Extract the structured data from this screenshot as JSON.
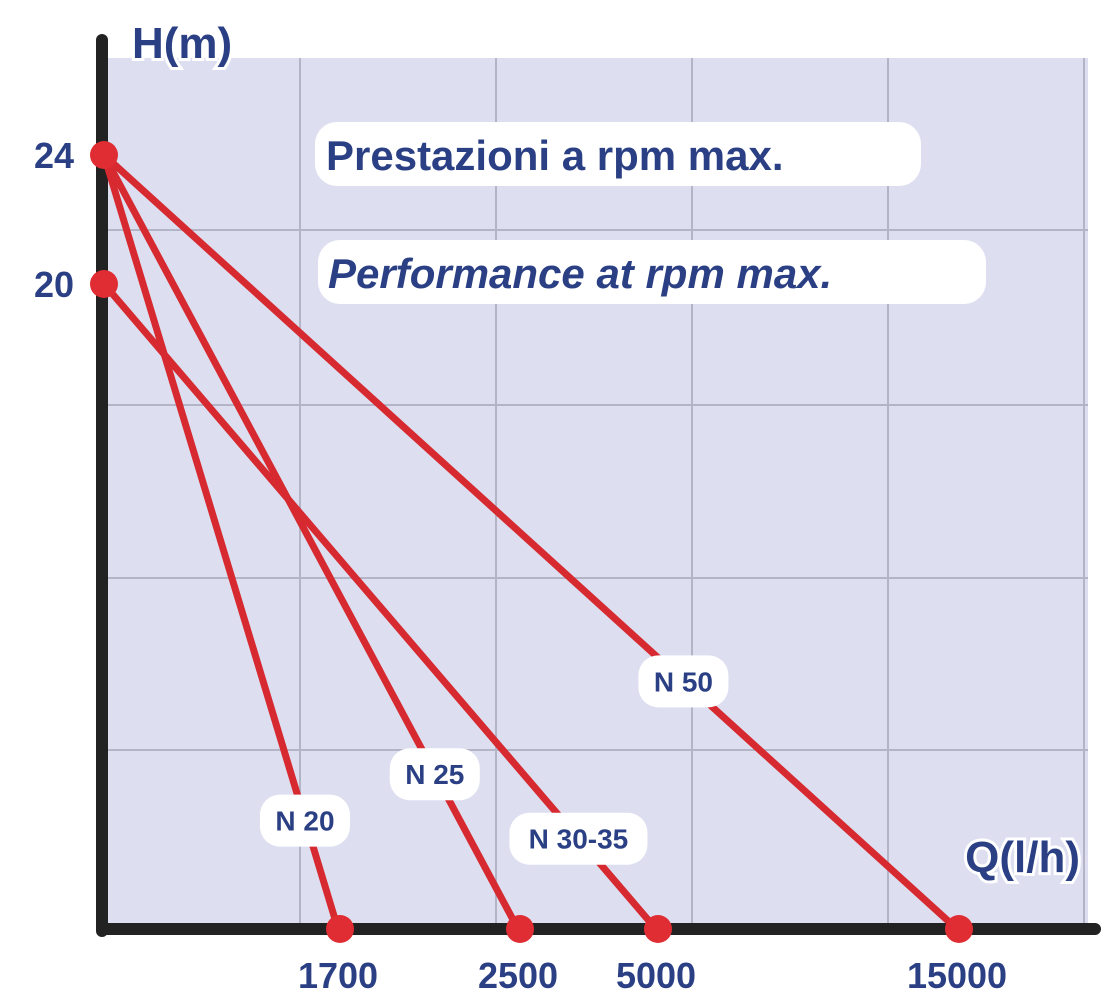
{
  "chart_data": {
    "type": "line",
    "title": "Prestazioni a rpm max.",
    "subtitle": "Performance at rpm max.",
    "xlabel": "Q(l/h)",
    "ylabel": "H(m)",
    "x_ticks": [
      "1700",
      "2500",
      "5000",
      "15000"
    ],
    "y_ticks": [
      "24",
      "20"
    ],
    "ylim": [
      0,
      24
    ],
    "grid": true,
    "series": [
      {
        "name": "N 20",
        "points": [
          {
            "x": 0,
            "y": 24
          },
          {
            "x": 1700,
            "y": 0
          }
        ]
      },
      {
        "name": "N 25",
        "points": [
          {
            "x": 0,
            "y": 24
          },
          {
            "x": 2500,
            "y": 0
          }
        ]
      },
      {
        "name": "N 30-35",
        "points": [
          {
            "x": 0,
            "y": 20
          },
          {
            "x": 5000,
            "y": 0
          }
        ]
      },
      {
        "name": "N 50",
        "points": [
          {
            "x": 0,
            "y": 24
          },
          {
            "x": 15000,
            "y": 0
          }
        ]
      }
    ]
  },
  "colors": {
    "plot_bg": "#dddff0",
    "grid": "#b3b4c6",
    "line": "#d62a30",
    "marker": "#e02d33",
    "text": "#2b4084",
    "axis": "#222222"
  }
}
